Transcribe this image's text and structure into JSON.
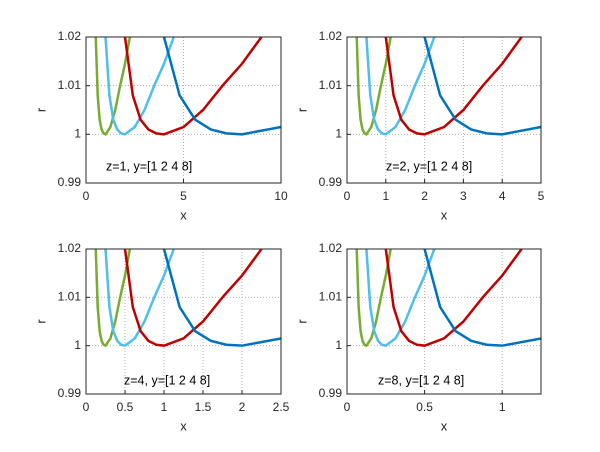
{
  "chart_data": [
    {
      "type": "line",
      "annotation": "z=1, y=[1 2 4 8]",
      "xlabel": "x",
      "ylabel": "r",
      "xlim": [
        0,
        10
      ],
      "xticks": [
        0,
        5,
        10
      ],
      "ylim": [
        0.99,
        1.02
      ],
      "yticks": [
        0.99,
        1,
        1.01,
        1.02
      ],
      "grid": true,
      "series": [
        {
          "color": "#77ac30",
          "x": [
            0.5,
            0.6,
            0.7,
            0.8,
            0.9,
            1,
            1.25,
            1.5,
            1.75,
            2,
            2.25
          ],
          "values": [
            1.02,
            1.008,
            1.003,
            1.001,
            1.0002,
            1,
            1.0015,
            1.005,
            1.01,
            1.0145,
            1.02
          ]
        },
        {
          "color": "#4dbeee",
          "x": [
            1,
            1.2,
            1.4,
            1.6,
            1.8,
            2,
            2.5,
            3,
            3.5,
            4,
            4.5
          ],
          "values": [
            1.02,
            1.008,
            1.003,
            1.001,
            1.0002,
            1,
            1.0015,
            1.005,
            1.01,
            1.0145,
            1.02
          ]
        },
        {
          "color": "#c00000",
          "x": [
            2,
            2.4,
            2.8,
            3.2,
            3.6,
            4,
            5,
            6,
            7,
            8,
            9
          ],
          "values": [
            1.02,
            1.008,
            1.003,
            1.001,
            1.0002,
            1,
            1.0015,
            1.005,
            1.01,
            1.0145,
            1.02
          ]
        },
        {
          "color": "#0072bd",
          "x": [
            4,
            4.8,
            5.6,
            6.4,
            7.2,
            8,
            10
          ],
          "values": [
            1.02,
            1.008,
            1.003,
            1.001,
            1.0002,
            1,
            1.0015
          ]
        }
      ]
    },
    {
      "type": "line",
      "annotation": "z=2, y=[1 2 4 8]",
      "xlabel": "x",
      "ylabel": "r",
      "xlim": [
        0,
        5
      ],
      "xticks": [
        0,
        1,
        2,
        3,
        4,
        5
      ],
      "ylim": [
        0.99,
        1.02
      ],
      "yticks": [
        0.99,
        1,
        1.01,
        1.02
      ],
      "grid": true,
      "series": [
        {
          "color": "#77ac30",
          "x": [
            0.25,
            0.3,
            0.35,
            0.4,
            0.45,
            0.5,
            0.625,
            0.75,
            0.875,
            1,
            1.125
          ],
          "values": [
            1.02,
            1.008,
            1.003,
            1.001,
            1.0002,
            1,
            1.0015,
            1.005,
            1.01,
            1.0145,
            1.02
          ]
        },
        {
          "color": "#4dbeee",
          "x": [
            0.5,
            0.6,
            0.7,
            0.8,
            0.9,
            1,
            1.25,
            1.5,
            1.75,
            2,
            2.25
          ],
          "values": [
            1.02,
            1.008,
            1.003,
            1.001,
            1.0002,
            1,
            1.0015,
            1.005,
            1.01,
            1.0145,
            1.02
          ]
        },
        {
          "color": "#c00000",
          "x": [
            1,
            1.2,
            1.4,
            1.6,
            1.8,
            2,
            2.5,
            3,
            3.5,
            4,
            4.5
          ],
          "values": [
            1.02,
            1.008,
            1.003,
            1.001,
            1.0002,
            1,
            1.0015,
            1.005,
            1.01,
            1.0145,
            1.02
          ]
        },
        {
          "color": "#0072bd",
          "x": [
            2,
            2.4,
            2.8,
            3.2,
            3.6,
            4,
            5
          ],
          "values": [
            1.02,
            1.008,
            1.003,
            1.001,
            1.0002,
            1,
            1.0015
          ]
        }
      ]
    },
    {
      "type": "line",
      "annotation": "z=4, y=[1 2 4 8]",
      "xlabel": "x",
      "ylabel": "r",
      "xlim": [
        0,
        2.5
      ],
      "xticks": [
        0,
        0.5,
        1,
        1.5,
        2,
        2.5
      ],
      "ylim": [
        0.99,
        1.02
      ],
      "yticks": [
        0.99,
        1,
        1.01,
        1.02
      ],
      "grid": true,
      "series": [
        {
          "color": "#77ac30",
          "x": [
            0.125,
            0.15,
            0.175,
            0.2,
            0.225,
            0.25,
            0.3125,
            0.375,
            0.4375,
            0.5,
            0.5625
          ],
          "values": [
            1.02,
            1.008,
            1.003,
            1.001,
            1.0002,
            1,
            1.0015,
            1.005,
            1.01,
            1.0145,
            1.02
          ]
        },
        {
          "color": "#4dbeee",
          "x": [
            0.25,
            0.3,
            0.35,
            0.4,
            0.45,
            0.5,
            0.625,
            0.75,
            0.875,
            1,
            1.125
          ],
          "values": [
            1.02,
            1.008,
            1.003,
            1.001,
            1.0002,
            1,
            1.0015,
            1.005,
            1.01,
            1.0145,
            1.02
          ]
        },
        {
          "color": "#c00000",
          "x": [
            0.5,
            0.6,
            0.7,
            0.8,
            0.9,
            1,
            1.25,
            1.5,
            1.75,
            2,
            2.25
          ],
          "values": [
            1.02,
            1.008,
            1.003,
            1.001,
            1.0002,
            1,
            1.0015,
            1.005,
            1.01,
            1.0145,
            1.02
          ]
        },
        {
          "color": "#0072bd",
          "x": [
            1,
            1.2,
            1.4,
            1.6,
            1.8,
            2,
            2.5
          ],
          "values": [
            1.02,
            1.008,
            1.003,
            1.001,
            1.0002,
            1,
            1.0015
          ]
        }
      ]
    },
    {
      "type": "line",
      "annotation": "z=8, y=[1 2 4 8]",
      "xlabel": "x",
      "ylabel": "r",
      "xlim": [
        0,
        1.25
      ],
      "xticks": [
        0,
        0.5,
        1
      ],
      "ylim": [
        0.99,
        1.02
      ],
      "yticks": [
        0.99,
        1,
        1.01,
        1.02
      ],
      "grid": true,
      "series": [
        {
          "color": "#77ac30",
          "x": [
            0.0625,
            0.075,
            0.0875,
            0.1,
            0.1125,
            0.125,
            0.15625,
            0.1875,
            0.21875,
            0.25,
            0.28125
          ],
          "values": [
            1.02,
            1.008,
            1.003,
            1.001,
            1.0002,
            1,
            1.0015,
            1.005,
            1.01,
            1.0145,
            1.02
          ]
        },
        {
          "color": "#4dbeee",
          "x": [
            0.125,
            0.15,
            0.175,
            0.2,
            0.225,
            0.25,
            0.3125,
            0.375,
            0.4375,
            0.5,
            0.5625
          ],
          "values": [
            1.02,
            1.008,
            1.003,
            1.001,
            1.0002,
            1,
            1.0015,
            1.005,
            1.01,
            1.0145,
            1.02
          ]
        },
        {
          "color": "#c00000",
          "x": [
            0.25,
            0.3,
            0.35,
            0.4,
            0.45,
            0.5,
            0.625,
            0.75,
            0.875,
            1,
            1.125
          ],
          "values": [
            1.02,
            1.008,
            1.003,
            1.001,
            1.0002,
            1,
            1.0015,
            1.005,
            1.01,
            1.0145,
            1.02
          ]
        },
        {
          "color": "#0072bd",
          "x": [
            0.5,
            0.6,
            0.7,
            0.8,
            0.9,
            1,
            1.25
          ],
          "values": [
            1.02,
            1.008,
            1.003,
            1.001,
            1.0002,
            1,
            1.0015
          ]
        }
      ]
    }
  ]
}
